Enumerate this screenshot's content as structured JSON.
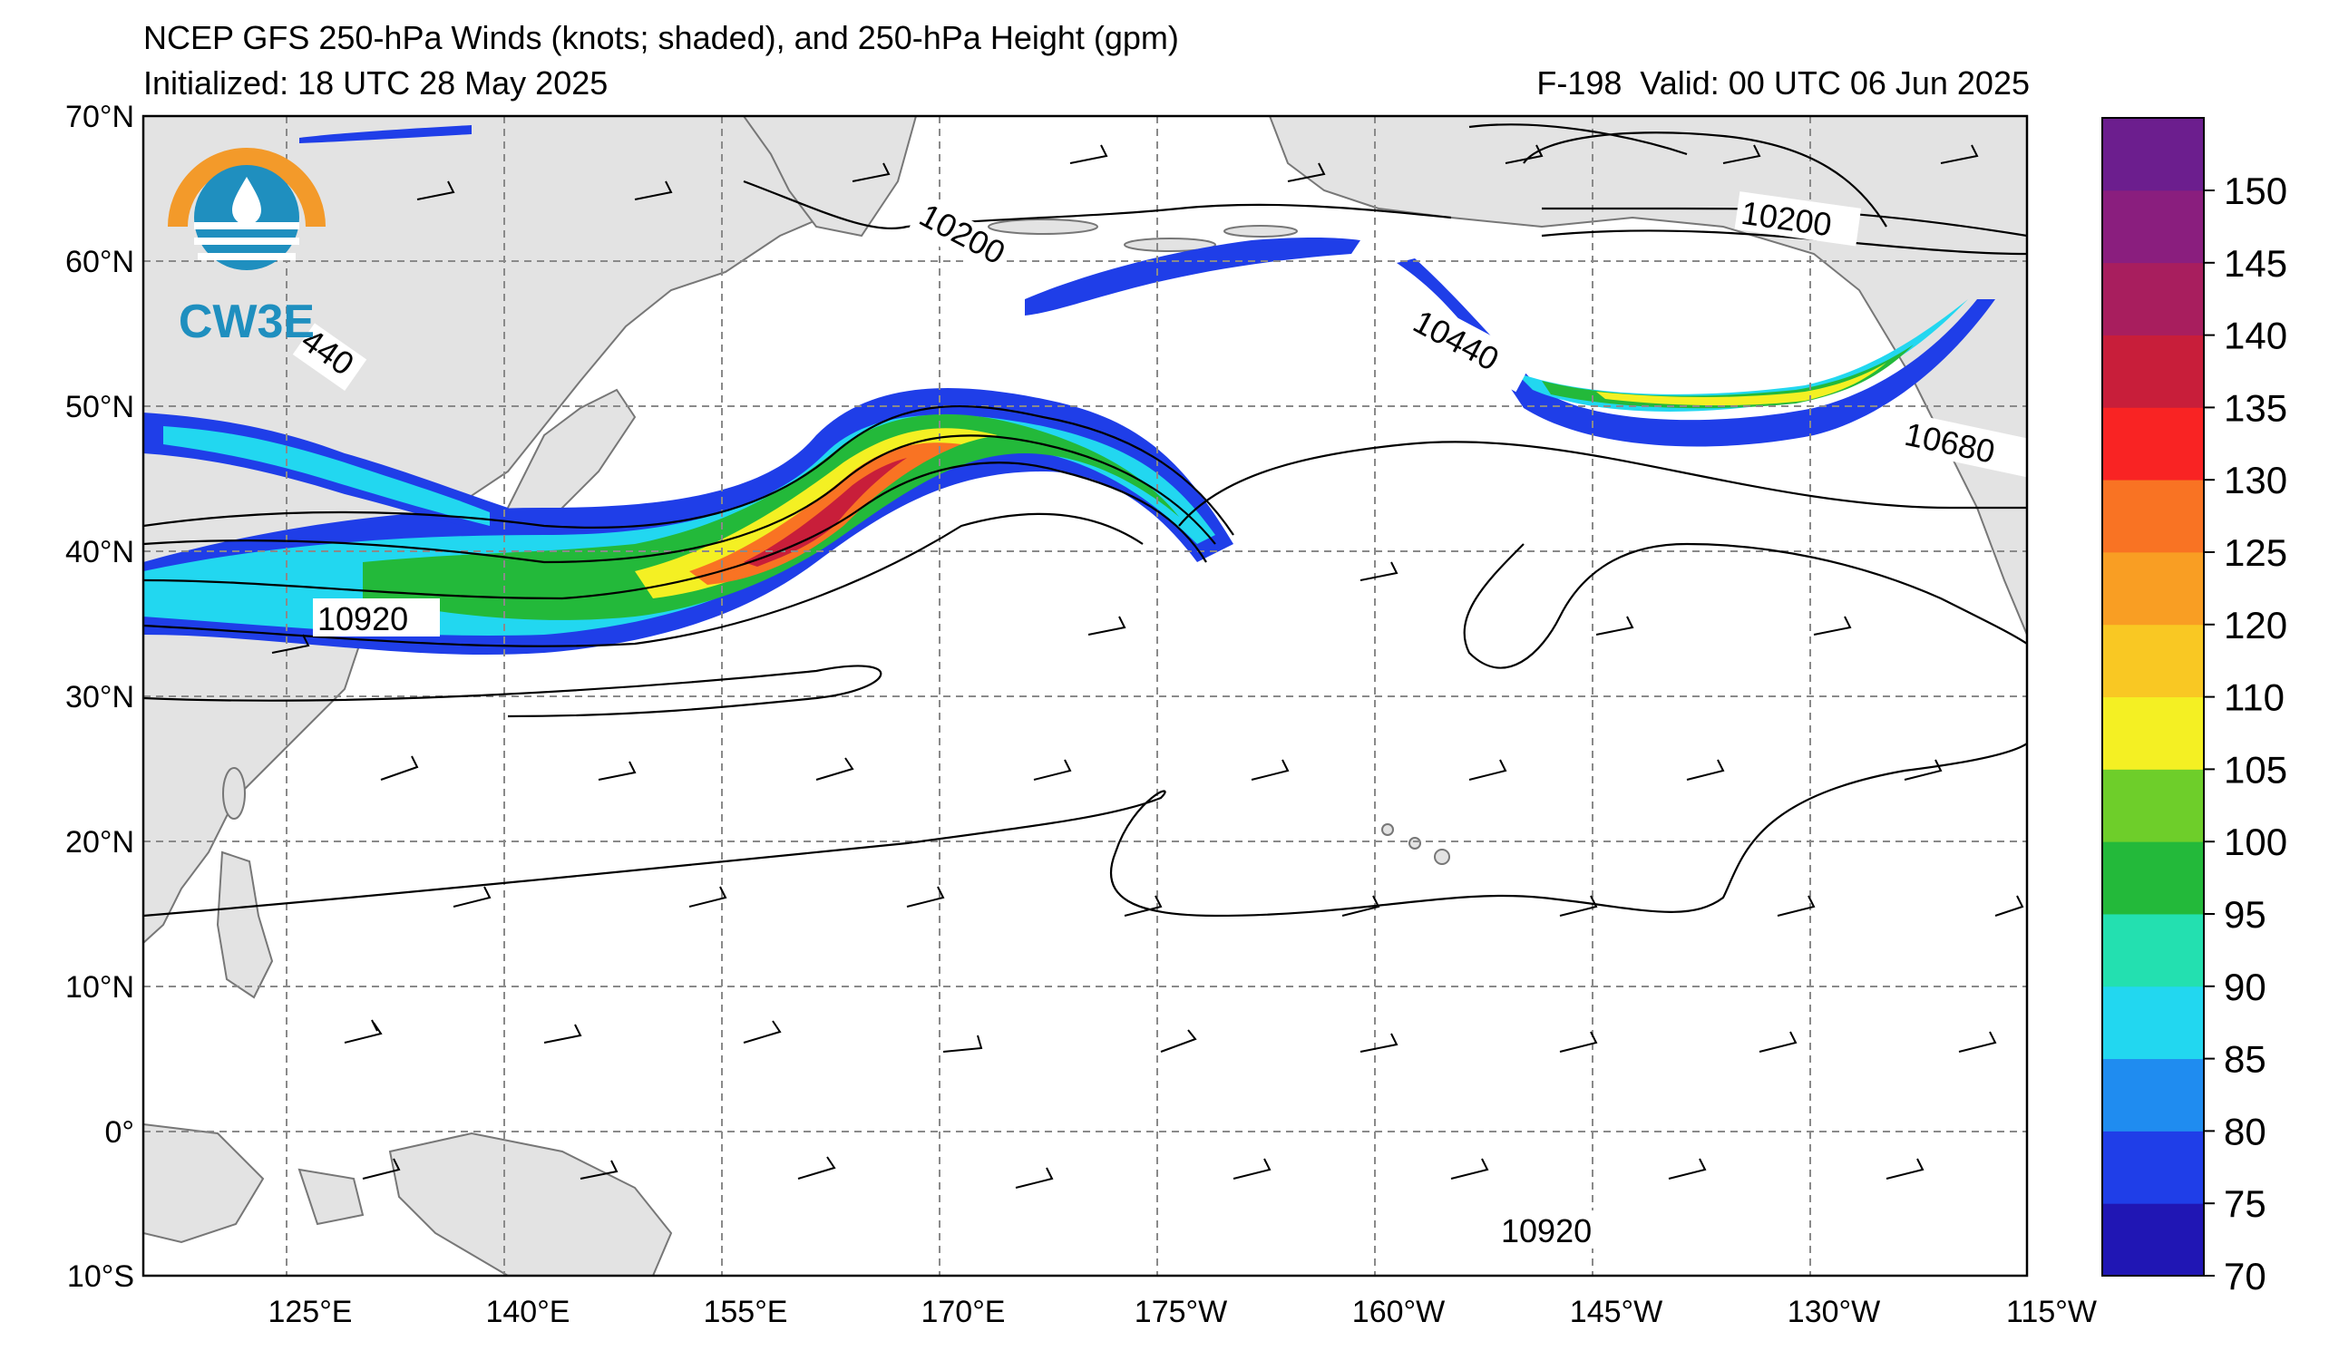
{
  "header": {
    "title": "NCEP GFS 250-hPa Winds (knots; shaded), and 250-hPa Height (gpm)",
    "initialized": "Initialized: 18 UTC 28 May 2025",
    "valid": "F-198  Valid: 00 UTC 06 Jun 2025"
  },
  "logo": {
    "text": "CW3E",
    "colors": [
      "#f39a2a",
      "#1f8fbf"
    ]
  },
  "map": {
    "lat_labels": [
      "70°N",
      "60°N",
      "50°N",
      "40°N",
      "30°N",
      "20°N",
      "10°N",
      "0°",
      "10°S"
    ],
    "lon_labels": [
      "125°E",
      "140°E",
      "155°E",
      "170°E",
      "175°W",
      "160°W",
      "145°W",
      "130°W",
      "115°W"
    ],
    "land_color": "#e3e3e3",
    "contour_labels": [
      "10200",
      "10200",
      "440",
      "10440",
      "10680",
      "10920",
      "10920"
    ]
  },
  "colorbar": {
    "labels": [
      "150",
      "145",
      "140",
      "135",
      "130",
      "125",
      "120",
      "110",
      "105",
      "100",
      "95",
      "90",
      "85",
      "80",
      "75",
      "70"
    ],
    "colors": [
      "#2016b4",
      "#1f3ee8",
      "#1f8cf0",
      "#22d7f0",
      "#23e0b0",
      "#23b93a",
      "#6ece2a",
      "#f4f023",
      "#f9c823",
      "#f99e23",
      "#f97323",
      "#f92323",
      "#c81e3a",
      "#a81e5e",
      "#8a1e7e",
      "#6c1e8e"
    ]
  }
}
